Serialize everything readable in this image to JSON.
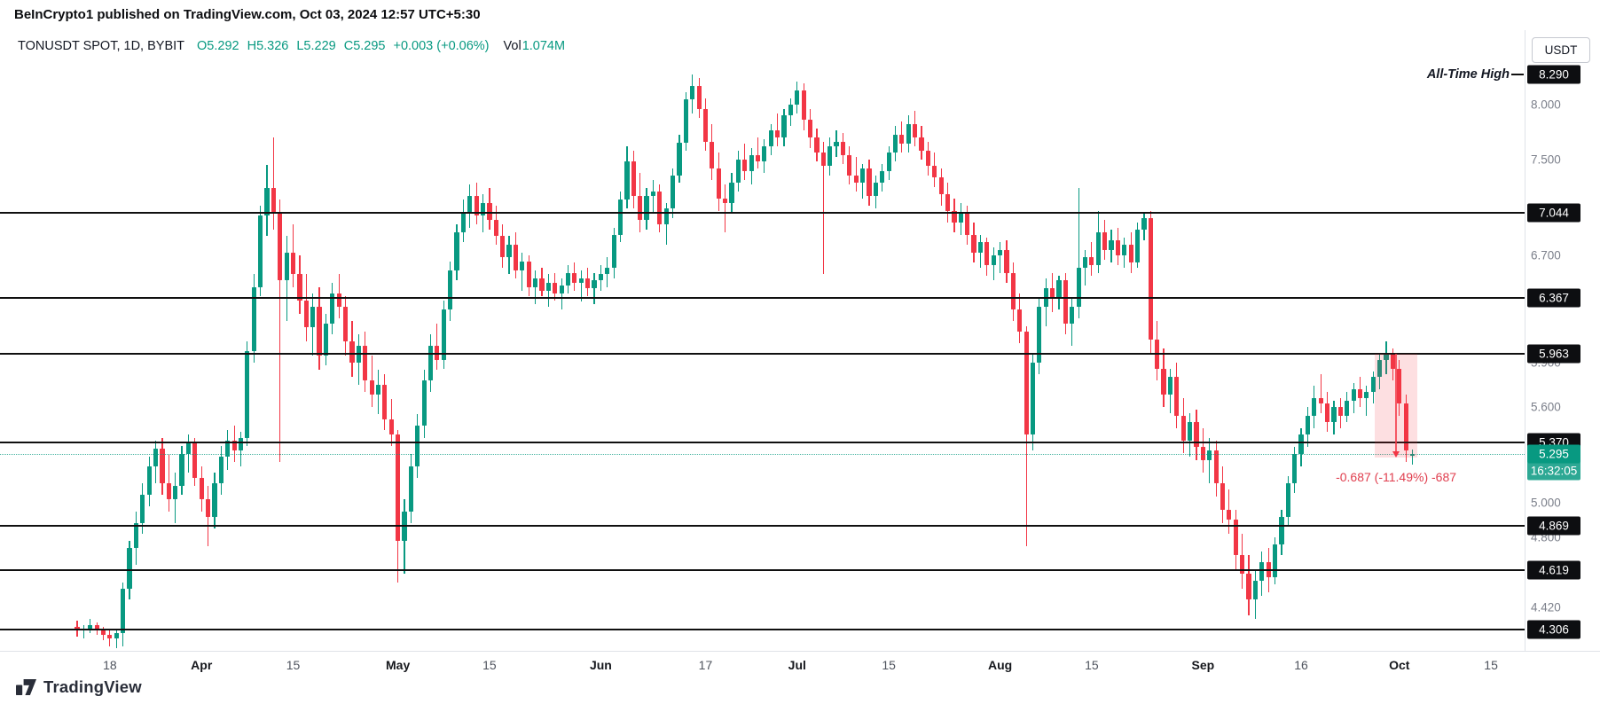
{
  "header": {
    "byline": "BeInCrypto1 published on TradingView.com, Oct 03, 2024 12:57 UTC+5:30"
  },
  "legend": {
    "symbol": "TONUSDT SPOT, 1D, BYBIT",
    "ohlc": [
      "O5.292",
      "H5.326",
      "L5.229",
      "C5.295"
    ],
    "change": "+0.003 (+0.06%)",
    "vol_label": "Vol",
    "vol_value": "1.074M"
  },
  "axis": {
    "currency": "USDT",
    "price_ticks": [
      {
        "label": "8.000",
        "price": 8.0
      },
      {
        "label": "7.500",
        "price": 7.5
      },
      {
        "label": "6.700",
        "price": 6.7
      },
      {
        "label": "5.900",
        "price": 5.9
      },
      {
        "label": "5.600",
        "price": 5.6
      },
      {
        "label": "5.000",
        "price": 5.0
      },
      {
        "label": "4.800",
        "price": 4.8
      },
      {
        "label": "4.420",
        "price": 4.42
      }
    ],
    "time_ticks": [
      {
        "label": "18",
        "day": 5,
        "major": false
      },
      {
        "label": "Apr",
        "day": 19,
        "major": true
      },
      {
        "label": "15",
        "day": 33,
        "major": false
      },
      {
        "label": "May",
        "day": 49,
        "major": true
      },
      {
        "label": "15",
        "day": 63,
        "major": false
      },
      {
        "label": "Jun",
        "day": 80,
        "major": true
      },
      {
        "label": "17",
        "day": 96,
        "major": false
      },
      {
        "label": "Jul",
        "day": 110,
        "major": true
      },
      {
        "label": "15",
        "day": 124,
        "major": false
      },
      {
        "label": "Aug",
        "day": 141,
        "major": true
      },
      {
        "label": "15",
        "day": 155,
        "major": false
      },
      {
        "label": "Sep",
        "day": 172,
        "major": true
      },
      {
        "label": "16",
        "day": 187,
        "major": false
      },
      {
        "label": "Oct",
        "day": 202,
        "major": true
      },
      {
        "label": "15",
        "day": 216,
        "major": false
      }
    ]
  },
  "footer": {
    "logo_text": "TradingView"
  },
  "colors": {
    "up": "#089981",
    "down": "#f23645",
    "level_line": "#101010",
    "level_badge_bg": "#0d0e11",
    "current_badge_bg": "#089981",
    "measure": "#f23645"
  },
  "chart_data": {
    "type": "candlestick",
    "title": "TONUSDT SPOT, 1D, BYBIT",
    "symbol": "TONUSDT",
    "market": "SPOT",
    "interval": "1D",
    "exchange": "BYBIT",
    "quote_currency": "USDT",
    "scale": "log",
    "x_start_date": "2024-03-13",
    "x_end_date": "2024-10-03",
    "ylim": [
      4.18,
      8.45
    ],
    "last_ohlc": {
      "open": 5.292,
      "high": 5.326,
      "low": 5.229,
      "close": 5.295,
      "change_text": "+0.003 (+0.06%)",
      "volume_text": "1.074M"
    },
    "levels": [
      {
        "price": 7.044,
        "label": "7.044"
      },
      {
        "price": 6.367,
        "label": "6.367"
      },
      {
        "price": 5.963,
        "label": "5.963"
      },
      {
        "price": 5.37,
        "label": "5.370"
      },
      {
        "price": 4.869,
        "label": "4.869"
      },
      {
        "price": 4.619,
        "label": "4.619"
      },
      {
        "price": 4.306,
        "label": "4.306"
      }
    ],
    "all_time_high": {
      "price": 8.29,
      "label": "All-Time High",
      "badge": "8.290"
    },
    "current_price": {
      "price": 5.295,
      "label": "5.295",
      "countdown": "16:32:05"
    },
    "measure": {
      "price_start": 5.963,
      "price_end": 5.276,
      "change": -0.687,
      "change_pct": -11.49,
      "label": "-0.687 (-11.49%) -687",
      "from_day": 198.6,
      "to_day": 204.4
    },
    "candles": [
      [
        4.32,
        4.35,
        4.27,
        4.3
      ],
      [
        4.3,
        4.33,
        4.26,
        4.31
      ],
      [
        4.31,
        4.36,
        4.29,
        4.33
      ],
      [
        4.33,
        4.34,
        4.28,
        4.3
      ],
      [
        4.3,
        4.32,
        4.25,
        4.28
      ],
      [
        4.28,
        4.31,
        4.22,
        4.26
      ],
      [
        4.26,
        4.3,
        4.21,
        4.29
      ],
      [
        4.29,
        4.55,
        4.22,
        4.52
      ],
      [
        4.52,
        4.78,
        4.46,
        4.74
      ],
      [
        4.74,
        4.95,
        4.65,
        4.88
      ],
      [
        4.88,
        5.12,
        4.82,
        5.05
      ],
      [
        5.05,
        5.28,
        4.98,
        5.22
      ],
      [
        5.22,
        5.38,
        5.12,
        5.33
      ],
      [
        5.33,
        5.4,
        5.05,
        5.12
      ],
      [
        5.12,
        5.3,
        4.95,
        5.02
      ],
      [
        5.02,
        5.18,
        4.88,
        5.1
      ],
      [
        5.1,
        5.35,
        5.05,
        5.3
      ],
      [
        5.3,
        5.42,
        5.18,
        5.37
      ],
      [
        5.37,
        5.4,
        5.1,
        5.15
      ],
      [
        5.15,
        5.22,
        4.95,
        5.02
      ],
      [
        5.02,
        5.1,
        4.75,
        4.92
      ],
      [
        4.92,
        5.18,
        4.85,
        5.12
      ],
      [
        5.12,
        5.35,
        5.05,
        5.28
      ],
      [
        5.28,
        5.45,
        5.2,
        5.38
      ],
      [
        5.38,
        5.48,
        5.25,
        5.32
      ],
      [
        5.32,
        5.44,
        5.22,
        5.4
      ],
      [
        5.4,
        6.05,
        5.35,
        5.98
      ],
      [
        5.98,
        6.55,
        5.9,
        6.45
      ],
      [
        6.45,
        7.1,
        6.38,
        7.02
      ],
      [
        7.02,
        7.45,
        6.85,
        7.25
      ],
      [
        7.25,
        7.7,
        6.9,
        7.05
      ],
      [
        7.05,
        7.15,
        5.25,
        6.5
      ],
      [
        6.5,
        6.85,
        6.2,
        6.72
      ],
      [
        6.72,
        6.95,
        6.45,
        6.55
      ],
      [
        6.55,
        6.7,
        6.25,
        6.35
      ],
      [
        6.35,
        6.55,
        6.05,
        6.15
      ],
      [
        6.15,
        6.4,
        5.95,
        6.3
      ],
      [
        6.3,
        6.45,
        5.85,
        5.95
      ],
      [
        5.95,
        6.25,
        5.88,
        6.18
      ],
      [
        6.18,
        6.48,
        6.1,
        6.4
      ],
      [
        6.4,
        6.55,
        6.22,
        6.3
      ],
      [
        6.3,
        6.38,
        5.95,
        6.05
      ],
      [
        6.05,
        6.2,
        5.8,
        5.9
      ],
      [
        5.9,
        6.1,
        5.75,
        6.02
      ],
      [
        6.02,
        6.12,
        5.7,
        5.78
      ],
      [
        5.78,
        5.95,
        5.6,
        5.68
      ],
      [
        5.68,
        5.85,
        5.55,
        5.75
      ],
      [
        5.75,
        5.82,
        5.45,
        5.52
      ],
      [
        5.52,
        5.65,
        5.35,
        5.42
      ],
      [
        5.42,
        5.45,
        4.55,
        4.78
      ],
      [
        4.78,
        5.02,
        4.6,
        4.95
      ],
      [
        4.95,
        5.3,
        4.88,
        5.22
      ],
      [
        5.22,
        5.55,
        5.15,
        5.48
      ],
      [
        5.48,
        5.85,
        5.4,
        5.78
      ],
      [
        5.78,
        6.1,
        5.7,
        6.02
      ],
      [
        6.02,
        6.18,
        5.85,
        5.92
      ],
      [
        5.92,
        6.35,
        5.86,
        6.28
      ],
      [
        6.28,
        6.65,
        6.2,
        6.58
      ],
      [
        6.58,
        6.95,
        6.5,
        6.88
      ],
      [
        6.88,
        7.15,
        6.8,
        7.05
      ],
      [
        7.05,
        7.28,
        6.92,
        7.18
      ],
      [
        7.18,
        7.3,
        6.95,
        7.02
      ],
      [
        7.02,
        7.2,
        6.88,
        7.12
      ],
      [
        7.12,
        7.25,
        6.9,
        6.98
      ],
      [
        6.98,
        7.1,
        6.78,
        6.85
      ],
      [
        6.85,
        6.95,
        6.6,
        6.68
      ],
      [
        6.68,
        6.85,
        6.55,
        6.78
      ],
      [
        6.78,
        6.88,
        6.52,
        6.58
      ],
      [
        6.58,
        6.72,
        6.42,
        6.65
      ],
      [
        6.65,
        6.7,
        6.38,
        6.45
      ],
      [
        6.45,
        6.58,
        6.32,
        6.52
      ],
      [
        6.52,
        6.6,
        6.38,
        6.42
      ],
      [
        6.42,
        6.55,
        6.3,
        6.48
      ],
      [
        6.48,
        6.56,
        6.35,
        6.4
      ],
      [
        6.4,
        6.52,
        6.28,
        6.46
      ],
      [
        6.46,
        6.62,
        6.4,
        6.56
      ],
      [
        6.56,
        6.64,
        6.42,
        6.48
      ],
      [
        6.48,
        6.58,
        6.34,
        6.52
      ],
      [
        6.52,
        6.6,
        6.38,
        6.44
      ],
      [
        6.44,
        6.56,
        6.32,
        6.5
      ],
      [
        6.5,
        6.62,
        6.42,
        6.55
      ],
      [
        6.55,
        6.68,
        6.45,
        6.6
      ],
      [
        6.6,
        6.92,
        6.52,
        6.86
      ],
      [
        6.86,
        7.22,
        6.8,
        7.15
      ],
      [
        7.15,
        7.62,
        7.08,
        7.48
      ],
      [
        7.48,
        7.58,
        7.08,
        7.18
      ],
      [
        7.18,
        7.38,
        6.88,
        6.98
      ],
      [
        6.98,
        7.25,
        6.9,
        7.18
      ],
      [
        7.18,
        7.32,
        7.05,
        7.22
      ],
      [
        7.22,
        7.28,
        6.88,
        6.95
      ],
      [
        6.95,
        7.12,
        6.78,
        7.08
      ],
      [
        7.08,
        7.42,
        7.0,
        7.36
      ],
      [
        7.36,
        7.72,
        7.3,
        7.65
      ],
      [
        7.65,
        8.12,
        7.58,
        8.05
      ],
      [
        8.05,
        8.29,
        7.92,
        8.18
      ],
      [
        8.18,
        8.26,
        7.88,
        7.96
      ],
      [
        7.96,
        8.06,
        7.58,
        7.66
      ],
      [
        7.66,
        7.82,
        7.32,
        7.42
      ],
      [
        7.42,
        7.56,
        7.06,
        7.16
      ],
      [
        7.16,
        7.28,
        6.88,
        7.12
      ],
      [
        7.12,
        7.38,
        7.04,
        7.3
      ],
      [
        7.3,
        7.58,
        7.22,
        7.5
      ],
      [
        7.5,
        7.64,
        7.32,
        7.4
      ],
      [
        7.4,
        7.6,
        7.28,
        7.54
      ],
      [
        7.54,
        7.7,
        7.42,
        7.48
      ],
      [
        7.48,
        7.68,
        7.38,
        7.62
      ],
      [
        7.62,
        7.82,
        7.54,
        7.76
      ],
      [
        7.76,
        7.92,
        7.62,
        7.7
      ],
      [
        7.7,
        7.96,
        7.62,
        7.9
      ],
      [
        7.9,
        8.06,
        7.8,
        8.0
      ],
      [
        8.0,
        8.22,
        7.92,
        8.14
      ],
      [
        8.14,
        8.2,
        7.76,
        7.86
      ],
      [
        7.86,
        7.96,
        7.6,
        7.7
      ],
      [
        7.7,
        7.78,
        7.48,
        7.56
      ],
      [
        7.56,
        7.66,
        6.55,
        7.44
      ],
      [
        7.44,
        7.7,
        7.36,
        7.62
      ],
      [
        7.62,
        7.76,
        7.52,
        7.66
      ],
      [
        7.66,
        7.74,
        7.46,
        7.54
      ],
      [
        7.54,
        7.62,
        7.28,
        7.36
      ],
      [
        7.36,
        7.52,
        7.22,
        7.3
      ],
      [
        7.3,
        7.46,
        7.16,
        7.42
      ],
      [
        7.42,
        7.5,
        7.1,
        7.18
      ],
      [
        7.18,
        7.36,
        7.08,
        7.3
      ],
      [
        7.3,
        7.46,
        7.22,
        7.4
      ],
      [
        7.4,
        7.62,
        7.32,
        7.56
      ],
      [
        7.56,
        7.8,
        7.48,
        7.72
      ],
      [
        7.72,
        7.84,
        7.56,
        7.64
      ],
      [
        7.64,
        7.9,
        7.56,
        7.82
      ],
      [
        7.82,
        7.94,
        7.62,
        7.7
      ],
      [
        7.7,
        7.8,
        7.5,
        7.58
      ],
      [
        7.58,
        7.66,
        7.36,
        7.44
      ],
      [
        7.44,
        7.56,
        7.26,
        7.34
      ],
      [
        7.34,
        7.42,
        7.1,
        7.2
      ],
      [
        7.2,
        7.3,
        6.96,
        7.06
      ],
      [
        7.06,
        7.16,
        6.88,
        6.96
      ],
      [
        6.96,
        7.12,
        6.86,
        7.04
      ],
      [
        7.04,
        7.1,
        6.78,
        6.86
      ],
      [
        6.86,
        6.96,
        6.64,
        6.72
      ],
      [
        6.72,
        6.86,
        6.6,
        6.8
      ],
      [
        6.8,
        6.84,
        6.54,
        6.62
      ],
      [
        6.62,
        6.76,
        6.5,
        6.7
      ],
      [
        6.7,
        6.8,
        6.56,
        6.74
      ],
      [
        6.74,
        6.82,
        6.48,
        6.56
      ],
      [
        6.56,
        6.64,
        6.2,
        6.28
      ],
      [
        6.28,
        6.4,
        6.04,
        6.12
      ],
      [
        6.12,
        6.16,
        4.75,
        5.42
      ],
      [
        5.42,
        5.96,
        5.32,
        5.9
      ],
      [
        5.9,
        6.36,
        5.82,
        6.3
      ],
      [
        6.3,
        6.52,
        6.16,
        6.44
      ],
      [
        6.44,
        6.56,
        6.26,
        6.36
      ],
      [
        6.36,
        6.54,
        6.28,
        6.5
      ],
      [
        6.5,
        6.56,
        6.1,
        6.18
      ],
      [
        6.18,
        6.36,
        6.02,
        6.3
      ],
      [
        6.3,
        7.25,
        6.22,
        6.6
      ],
      [
        6.6,
        6.74,
        6.46,
        6.68
      ],
      [
        6.68,
        6.8,
        6.54,
        6.62
      ],
      [
        6.62,
        7.06,
        6.56,
        6.88
      ],
      [
        6.88,
        6.98,
        6.66,
        6.74
      ],
      [
        6.74,
        6.9,
        6.64,
        6.82
      ],
      [
        6.82,
        6.92,
        6.62,
        6.7
      ],
      [
        6.7,
        6.84,
        6.6,
        6.78
      ],
      [
        6.78,
        6.88,
        6.56,
        6.64
      ],
      [
        6.64,
        6.96,
        6.6,
        6.9
      ],
      [
        6.9,
        7.04,
        6.82,
        7.0
      ],
      [
        7.0,
        7.06,
        5.96,
        6.06
      ],
      [
        6.06,
        6.2,
        5.78,
        5.86
      ],
      [
        5.86,
        6.0,
        5.6,
        5.68
      ],
      [
        5.68,
        5.86,
        5.56,
        5.8
      ],
      [
        5.8,
        5.9,
        5.46,
        5.54
      ],
      [
        5.54,
        5.66,
        5.3,
        5.38
      ],
      [
        5.38,
        5.56,
        5.28,
        5.5
      ],
      [
        5.5,
        5.58,
        5.26,
        5.34
      ],
      [
        5.34,
        5.46,
        5.18,
        5.26
      ],
      [
        5.26,
        5.4,
        5.12,
        5.32
      ],
      [
        5.32,
        5.38,
        5.04,
        5.12
      ],
      [
        5.12,
        5.22,
        4.88,
        4.96
      ],
      [
        4.96,
        5.08,
        4.82,
        4.9
      ],
      [
        4.9,
        4.96,
        4.62,
        4.7
      ],
      [
        4.7,
        4.82,
        4.52,
        4.6
      ],
      [
        4.6,
        4.7,
        4.38,
        4.46
      ],
      [
        4.46,
        4.62,
        4.36,
        4.56
      ],
      [
        4.56,
        4.72,
        4.48,
        4.66
      ],
      [
        4.66,
        4.74,
        4.5,
        4.58
      ],
      [
        4.58,
        4.8,
        4.54,
        4.76
      ],
      [
        4.76,
        4.96,
        4.7,
        4.92
      ],
      [
        4.92,
        5.16,
        4.86,
        5.12
      ],
      [
        5.12,
        5.34,
        5.06,
        5.3
      ],
      [
        5.3,
        5.46,
        5.22,
        5.42
      ],
      [
        5.42,
        5.6,
        5.34,
        5.54
      ],
      [
        5.54,
        5.74,
        5.46,
        5.66
      ],
      [
        5.66,
        5.82,
        5.56,
        5.62
      ],
      [
        5.62,
        5.7,
        5.44,
        5.5
      ],
      [
        5.5,
        5.64,
        5.42,
        5.6
      ],
      [
        5.6,
        5.66,
        5.46,
        5.54
      ],
      [
        5.54,
        5.7,
        5.5,
        5.64
      ],
      [
        5.64,
        5.76,
        5.56,
        5.72
      ],
      [
        5.72,
        5.8,
        5.6,
        5.66
      ],
      [
        5.66,
        5.74,
        5.54,
        5.7
      ],
      [
        5.7,
        5.84,
        5.62,
        5.8
      ],
      [
        5.8,
        5.96,
        5.72,
        5.92
      ],
      [
        5.92,
        6.05,
        5.82,
        5.96
      ],
      [
        5.96,
        6.0,
        5.78,
        5.86
      ],
      [
        5.86,
        5.92,
        5.54,
        5.62
      ],
      [
        5.62,
        5.68,
        5.25,
        5.32
      ],
      [
        5.292,
        5.326,
        5.229,
        5.295
      ]
    ]
  }
}
